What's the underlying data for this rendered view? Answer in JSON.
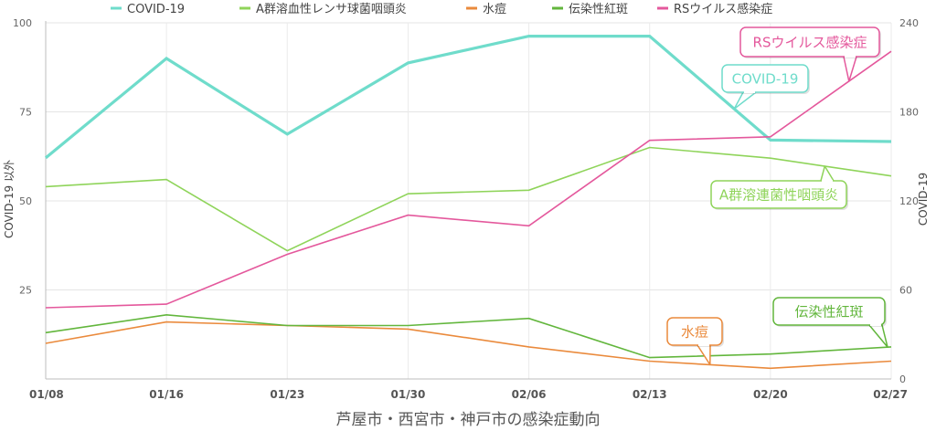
{
  "chart_data": {
    "type": "line",
    "xlabel": "芦屋市・西宮市・神戸市の感染症動向",
    "ylabel_left": "COVID-19 以外",
    "ylabel_right": "COVID-19",
    "categories": [
      "01/08",
      "01/16",
      "01/23",
      "01/30",
      "02/06",
      "02/13",
      "02/20",
      "02/27"
    ],
    "ylim_left": [
      0,
      100
    ],
    "yticks_left": [
      25,
      50,
      75,
      100
    ],
    "ylim_right": [
      0,
      240
    ],
    "yticks_right": [
      0,
      60,
      120,
      180,
      240
    ],
    "grid": true,
    "legend_position": "top",
    "series": [
      {
        "name": "COVID-19",
        "axis": "right",
        "color": "#6fdccb",
        "width": 3.2,
        "values": [
          149,
          216,
          165,
          213,
          231,
          231,
          161,
          160
        ]
      },
      {
        "name": "A群溶血性レンサ球菌咽頭炎",
        "axis": "left",
        "color": "#8fd45a",
        "width": 1.6,
        "values": [
          54,
          56,
          36,
          52,
          53,
          65,
          62,
          57
        ]
      },
      {
        "name": "水痘",
        "axis": "left",
        "color": "#ea8a3c",
        "width": 1.6,
        "values": [
          10,
          16,
          15,
          14,
          9,
          5,
          3,
          5
        ]
      },
      {
        "name": "伝染性紅斑",
        "axis": "left",
        "color": "#62b63c",
        "width": 1.6,
        "values": [
          13,
          18,
          15,
          15,
          17,
          6,
          7,
          9
        ]
      },
      {
        "name": "RSウイルス感染症",
        "axis": "left",
        "color": "#e4589c",
        "width": 1.6,
        "values": [
          20,
          21,
          35,
          46,
          43,
          67,
          68,
          92
        ]
      }
    ],
    "annotations": [
      {
        "text": "RSウイルス感染症",
        "series": "RSウイルス感染症"
      },
      {
        "text": "COVID-19",
        "series": "COVID-19"
      },
      {
        "text": "A群溶連菌性咽頭炎",
        "series": "A群溶血性レンサ球菌咽頭炎"
      },
      {
        "text": "水痘",
        "series": "水痘"
      },
      {
        "text": "伝染性紅斑",
        "series": "伝染性紅斑"
      }
    ]
  }
}
